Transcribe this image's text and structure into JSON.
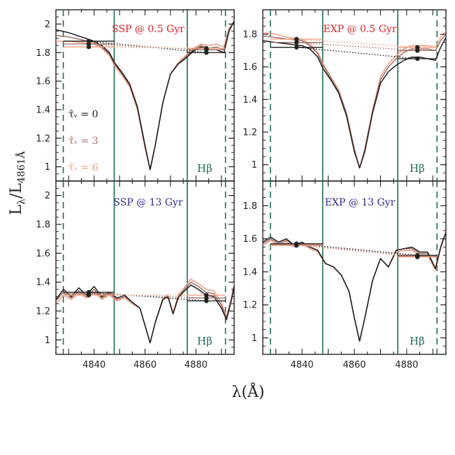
{
  "colors": {
    "tau0": "#1a1a1a",
    "tau3": "#a07068",
    "tau6": "#ef9e82",
    "band": "#1f6b4f",
    "title_red": "#e0202a",
    "title_blue": "#2b2b8c"
  },
  "axis": {
    "xlabel": "λ(Å)",
    "ylabel_main": "L",
    "ylabel_sub1": "λ",
    "ylabel_den": "/L",
    "ylabel_sub2": "4861Å",
    "xticks": [
      "4840",
      "4860",
      "4880"
    ],
    "yticks_left": [
      "1",
      "1.2",
      "1.4",
      "1.6",
      "1.8",
      "2"
    ],
    "yticks_right": [
      "1",
      "1.2",
      "1.4",
      "1.6",
      "1.8"
    ]
  },
  "legend": {
    "entries": [
      {
        "label": "τ̂ᵥ = 0",
        "series": "tau0"
      },
      {
        "label": "τ̂ᵥ = 3",
        "series": "tau3"
      },
      {
        "label": "τ̂ᵥ = 6",
        "series": "tau6"
      }
    ]
  },
  "hb_label": "Hβ",
  "chart_data": [
    {
      "type": "line",
      "title": "SSP @ 0.5 Gyr",
      "title_color": "red",
      "xlim": [
        4825,
        4895
      ],
      "ylim": [
        0.9,
        2.1
      ],
      "bands": {
        "blue_continuum": [
          4827.9,
          4847.9
        ],
        "line": [
          4847.9,
          4876.6
        ],
        "red_continuum": [
          4876.6,
          4891.6
        ]
      },
      "series": [
        {
          "key": "tau0",
          "x": [
            4825,
            4830,
            4835,
            4840,
            4843,
            4846,
            4848,
            4851,
            4854,
            4857,
            4860,
            4862,
            4864,
            4867,
            4870,
            4873,
            4876,
            4879,
            4882,
            4885,
            4888,
            4891,
            4893,
            4895
          ],
          "y": [
            1.96,
            1.94,
            1.91,
            1.88,
            1.85,
            1.8,
            1.73,
            1.66,
            1.58,
            1.42,
            1.15,
            0.98,
            1.15,
            1.45,
            1.65,
            1.72,
            1.76,
            1.81,
            1.84,
            1.82,
            1.82,
            1.8,
            1.95,
            2.02
          ]
        },
        {
          "key": "tau3",
          "x": [
            4825,
            4830,
            4835,
            4840,
            4843,
            4846,
            4848,
            4851,
            4854,
            4857,
            4860,
            4862,
            4864,
            4867,
            4870,
            4873,
            4876,
            4879,
            4882,
            4885,
            4888,
            4891,
            4893,
            4895
          ],
          "y": [
            1.92,
            1.91,
            1.89,
            1.87,
            1.84,
            1.79,
            1.72,
            1.65,
            1.57,
            1.41,
            1.14,
            0.98,
            1.15,
            1.45,
            1.65,
            1.72,
            1.77,
            1.82,
            1.85,
            1.83,
            1.84,
            1.82,
            1.96,
            2.02
          ]
        },
        {
          "key": "tau6",
          "x": [
            4825,
            4830,
            4835,
            4840,
            4843,
            4846,
            4848,
            4851,
            4854,
            4857,
            4860,
            4862,
            4864,
            4867,
            4870,
            4873,
            4876,
            4879,
            4882,
            4885,
            4888,
            4891,
            4893,
            4895
          ],
          "y": [
            1.88,
            1.88,
            1.87,
            1.86,
            1.83,
            1.78,
            1.71,
            1.64,
            1.56,
            1.4,
            1.13,
            0.98,
            1.15,
            1.45,
            1.65,
            1.73,
            1.78,
            1.83,
            1.86,
            1.85,
            1.86,
            1.84,
            1.97,
            2.02
          ]
        }
      ],
      "continuum": [
        {
          "key": "tau0",
          "blue": 1.88,
          "red": 1.8
        },
        {
          "key": "tau3",
          "blue": 1.86,
          "red": 1.82
        },
        {
          "key": "tau6",
          "blue": 1.84,
          "red": 1.83
        }
      ]
    },
    {
      "type": "line",
      "title": "EXP @ 0.5 Gyr",
      "title_color": "red",
      "xlim": [
        4825,
        4895
      ],
      "ylim": [
        0.9,
        1.95
      ],
      "bands": {
        "blue_continuum": [
          4827.9,
          4847.9
        ],
        "line": [
          4847.9,
          4876.6
        ],
        "red_continuum": [
          4876.6,
          4891.6
        ]
      },
      "series": [
        {
          "key": "tau0",
          "x": [
            4825,
            4830,
            4835,
            4840,
            4843,
            4846,
            4848,
            4851,
            4854,
            4857,
            4860,
            4862,
            4864,
            4867,
            4870,
            4873,
            4876,
            4879,
            4882,
            4885,
            4888,
            4891,
            4893,
            4895
          ],
          "y": [
            1.76,
            1.75,
            1.74,
            1.73,
            1.71,
            1.66,
            1.59,
            1.52,
            1.44,
            1.3,
            1.08,
            0.98,
            1.08,
            1.32,
            1.5,
            1.57,
            1.61,
            1.64,
            1.66,
            1.66,
            1.65,
            1.64,
            1.72,
            1.78
          ]
        },
        {
          "key": "tau3",
          "x": [
            4825,
            4830,
            4835,
            4840,
            4843,
            4846,
            4848,
            4851,
            4854,
            4857,
            4860,
            4862,
            4864,
            4867,
            4870,
            4873,
            4876,
            4879,
            4882,
            4885,
            4888,
            4891,
            4893,
            4895
          ],
          "y": [
            1.79,
            1.78,
            1.77,
            1.76,
            1.73,
            1.68,
            1.61,
            1.53,
            1.45,
            1.31,
            1.09,
            0.98,
            1.09,
            1.33,
            1.52,
            1.6,
            1.65,
            1.69,
            1.71,
            1.71,
            1.71,
            1.7,
            1.76,
            1.8
          ]
        },
        {
          "key": "tau6",
          "x": [
            4825,
            4830,
            4835,
            4840,
            4843,
            4846,
            4848,
            4851,
            4854,
            4857,
            4860,
            4862,
            4864,
            4867,
            4870,
            4873,
            4876,
            4879,
            4882,
            4885,
            4888,
            4891,
            4893,
            4895
          ],
          "y": [
            1.81,
            1.8,
            1.78,
            1.77,
            1.74,
            1.69,
            1.62,
            1.54,
            1.46,
            1.32,
            1.1,
            0.98,
            1.1,
            1.34,
            1.54,
            1.62,
            1.67,
            1.71,
            1.73,
            1.73,
            1.73,
            1.72,
            1.78,
            1.82
          ]
        }
      ],
      "continuum": [
        {
          "key": "tau0",
          "blue": 1.72,
          "red": 1.65
        },
        {
          "key": "tau3",
          "blue": 1.75,
          "red": 1.7
        },
        {
          "key": "tau6",
          "blue": 1.77,
          "red": 1.72
        }
      ]
    },
    {
      "type": "line",
      "title": "SSP @ 13 Gyr",
      "title_color": "blue",
      "xlim": [
        4825,
        4895
      ],
      "ylim": [
        0.9,
        2.1
      ],
      "bands": {
        "blue_continuum": [
          4827.9,
          4847.9
        ],
        "line": [
          4847.9,
          4876.6
        ],
        "red_continuum": [
          4876.6,
          4891.6
        ]
      },
      "series": [
        {
          "key": "tau0",
          "x": [
            4825,
            4828,
            4831,
            4834,
            4837,
            4840,
            4843,
            4846,
            4849,
            4852,
            4855,
            4858,
            4860,
            4862,
            4864,
            4867,
            4869,
            4871,
            4873,
            4875,
            4878,
            4881,
            4884,
            4887,
            4890,
            4892,
            4894,
            4895
          ],
          "y": [
            1.28,
            1.35,
            1.3,
            1.36,
            1.31,
            1.37,
            1.3,
            1.33,
            1.29,
            1.31,
            1.26,
            1.22,
            1.1,
            0.98,
            1.12,
            1.28,
            1.3,
            1.18,
            1.29,
            1.33,
            1.38,
            1.35,
            1.31,
            1.3,
            1.22,
            1.14,
            1.28,
            1.37
          ]
        },
        {
          "key": "tau3",
          "x": [
            4825,
            4828,
            4831,
            4834,
            4837,
            4840,
            4843,
            4846,
            4849,
            4852,
            4855,
            4858,
            4860,
            4862,
            4864,
            4867,
            4869,
            4871,
            4873,
            4875,
            4878,
            4881,
            4884,
            4887,
            4890,
            4892,
            4894,
            4895
          ],
          "y": [
            1.27,
            1.33,
            1.29,
            1.34,
            1.3,
            1.35,
            1.29,
            1.32,
            1.28,
            1.3,
            1.26,
            1.22,
            1.1,
            0.98,
            1.12,
            1.28,
            1.3,
            1.18,
            1.3,
            1.34,
            1.4,
            1.37,
            1.33,
            1.32,
            1.24,
            1.15,
            1.29,
            1.38
          ]
        },
        {
          "key": "tau6",
          "x": [
            4825,
            4828,
            4831,
            4834,
            4837,
            4840,
            4843,
            4846,
            4849,
            4852,
            4855,
            4858,
            4860,
            4862,
            4864,
            4867,
            4869,
            4871,
            4873,
            4875,
            4878,
            4881,
            4884,
            4887,
            4890,
            4892,
            4894,
            4895
          ],
          "y": [
            1.25,
            1.31,
            1.28,
            1.32,
            1.29,
            1.33,
            1.28,
            1.31,
            1.27,
            1.29,
            1.25,
            1.22,
            1.1,
            0.98,
            1.12,
            1.29,
            1.31,
            1.19,
            1.31,
            1.35,
            1.42,
            1.39,
            1.35,
            1.34,
            1.26,
            1.16,
            1.3,
            1.39
          ]
        }
      ],
      "continuum": [
        {
          "key": "tau0",
          "blue": 1.33,
          "red": 1.27
        },
        {
          "key": "tau3",
          "blue": 1.32,
          "red": 1.29
        },
        {
          "key": "tau6",
          "blue": 1.31,
          "red": 1.31
        }
      ]
    },
    {
      "type": "line",
      "title": "EXP @ 13 Gyr",
      "title_color": "blue",
      "xlim": [
        4825,
        4895
      ],
      "ylim": [
        0.9,
        1.95
      ],
      "bands": {
        "blue_continuum": [
          4827.9,
          4847.9
        ],
        "line": [
          4847.9,
          4876.6
        ],
        "red_continuum": [
          4876.6,
          4891.6
        ]
      },
      "series": [
        {
          "key": "tau0",
          "x": [
            4825,
            4828,
            4831,
            4834,
            4837,
            4840,
            4843,
            4846,
            4849,
            4852,
            4855,
            4858,
            4860,
            4862,
            4864,
            4867,
            4870,
            4873,
            4876,
            4879,
            4882,
            4885,
            4888,
            4891,
            4893,
            4895
          ],
          "y": [
            1.58,
            1.61,
            1.58,
            1.6,
            1.56,
            1.58,
            1.55,
            1.53,
            1.45,
            1.43,
            1.38,
            1.28,
            1.12,
            0.98,
            1.12,
            1.35,
            1.48,
            1.43,
            1.53,
            1.54,
            1.55,
            1.52,
            1.52,
            1.42,
            1.55,
            1.64
          ]
        },
        {
          "key": "tau3",
          "x": [
            4825,
            4828,
            4831,
            4834,
            4837,
            4840,
            4843,
            4846,
            4849,
            4852,
            4855,
            4858,
            4860,
            4862,
            4864,
            4867,
            4870,
            4873,
            4876,
            4879,
            4882,
            4885,
            4888,
            4891,
            4893,
            4895
          ],
          "y": [
            1.57,
            1.6,
            1.57,
            1.59,
            1.56,
            1.57,
            1.55,
            1.53,
            1.45,
            1.43,
            1.38,
            1.28,
            1.12,
            0.98,
            1.12,
            1.35,
            1.48,
            1.43,
            1.53,
            1.54,
            1.54,
            1.51,
            1.51,
            1.42,
            1.55,
            1.64
          ]
        },
        {
          "key": "tau6",
          "x": [
            4825,
            4828,
            4831,
            4834,
            4837,
            4840,
            4843,
            4846,
            4849,
            4852,
            4855,
            4858,
            4860,
            4862,
            4864,
            4867,
            4870,
            4873,
            4876,
            4879,
            4882,
            4885,
            4888,
            4891,
            4893,
            4895
          ],
          "y": [
            1.56,
            1.59,
            1.56,
            1.58,
            1.55,
            1.57,
            1.54,
            1.52,
            1.45,
            1.43,
            1.38,
            1.28,
            1.12,
            0.98,
            1.12,
            1.35,
            1.48,
            1.43,
            1.52,
            1.53,
            1.53,
            1.5,
            1.5,
            1.41,
            1.54,
            1.64
          ]
        }
      ],
      "continuum": [
        {
          "key": "tau0",
          "blue": 1.57,
          "red": 1.5
        },
        {
          "key": "tau3",
          "blue": 1.565,
          "red": 1.495
        },
        {
          "key": "tau6",
          "blue": 1.56,
          "red": 1.49
        }
      ]
    }
  ]
}
